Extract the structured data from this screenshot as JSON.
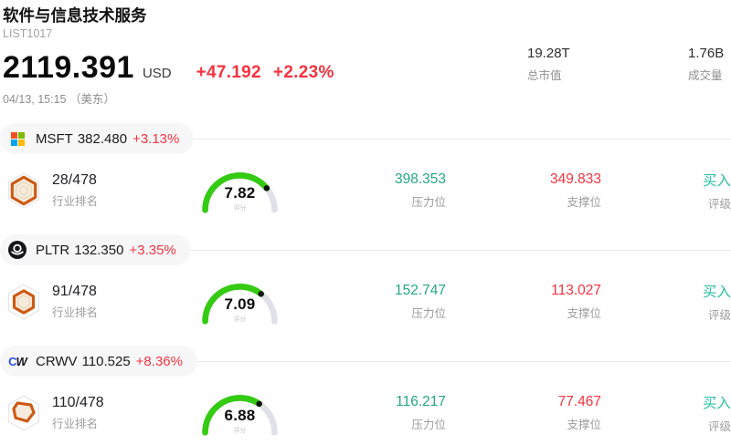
{
  "header": {
    "title": "软件与信息技术服务",
    "code": "LIST1017",
    "price": "2119.391",
    "currency": "USD",
    "change": "+47.192",
    "change_pct": "+2.23%",
    "time": "04/13, 15:15 （美东）",
    "market_cap_value": "19.28T",
    "market_cap_label": "总市值",
    "volume_value": "1.76B",
    "volume_label": "成交量"
  },
  "columns": {
    "rank": "行业排名",
    "score": "评分",
    "resistance": "压力位",
    "support": "支撑位",
    "rating": "评级"
  },
  "colors": {
    "up_red": "#f5333f",
    "resistance_teal": "#25a784",
    "rating_teal": "#2cc0a6",
    "gauge_green": "#35cb14",
    "gauge_track": "#e0e0e8",
    "badge_orange": "#cd5a14"
  },
  "stocks": [
    {
      "symbol": "MSFT",
      "logo_icon": "microsoft-logo",
      "price": "382.480",
      "change_pct": "+3.13%",
      "rank": "28/478",
      "score": 7.82,
      "score_display": "7.82",
      "resistance": "398.353",
      "support": "349.833",
      "rating": "买入"
    },
    {
      "symbol": "PLTR",
      "logo_icon": "palantir-logo",
      "price": "132.350",
      "change_pct": "+3.35%",
      "rank": "91/478",
      "score": 7.09,
      "score_display": "7.09",
      "resistance": "152.747",
      "support": "113.027",
      "rating": "买入"
    },
    {
      "symbol": "CRWV",
      "logo_icon": "coreweave-logo",
      "price": "110.525",
      "change_pct": "+8.36%",
      "rank": "110/478",
      "score": 6.88,
      "score_display": "6.88",
      "resistance": "116.217",
      "support": "77.467",
      "rating": "买入"
    }
  ]
}
